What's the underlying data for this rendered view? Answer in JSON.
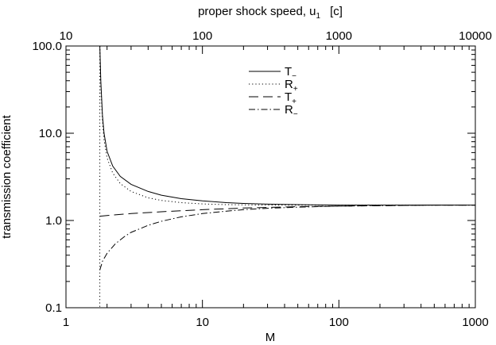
{
  "chart_data": {
    "type": "line",
    "top_axis_label": "proper shock speed,  u",
    "top_axis_label_subscript": "1",
    "top_axis_label_unit": "[c]",
    "xlabel": "M",
    "ylabel": "transmission coefficient",
    "x_scale": "log",
    "y_scale": "log",
    "xlim": [
      1,
      1000
    ],
    "ylim": [
      0.1,
      100
    ],
    "top_xlim": [
      10,
      10000
    ],
    "x_ticks": [
      "1",
      "10",
      "100",
      "1000"
    ],
    "y_ticks": [
      "0.1",
      "1.0",
      "10.0",
      "100.0"
    ],
    "top_ticks": [
      "10",
      "100",
      "1000",
      "10000"
    ],
    "grid": false,
    "legend_position": "top-center",
    "series": [
      {
        "name": "T",
        "name_subscript": "−",
        "style": "solid",
        "x": [
          1.77,
          1.8,
          1.85,
          1.9,
          2.0,
          2.2,
          2.5,
          3,
          4,
          5,
          7,
          10,
          15,
          20,
          30,
          50,
          100,
          200,
          500,
          1000
        ],
        "y": [
          100,
          40,
          16,
          10,
          6.2,
          4.2,
          3.2,
          2.6,
          2.15,
          1.95,
          1.78,
          1.68,
          1.6,
          1.57,
          1.54,
          1.52,
          1.5,
          1.5,
          1.5,
          1.5
        ]
      },
      {
        "name": "R",
        "name_subscript": "+",
        "style": "dotted",
        "x": [
          1.77,
          1.8,
          1.85,
          1.9,
          2.0,
          2.2,
          2.5,
          3,
          4,
          5,
          7,
          10,
          15,
          20,
          30,
          50,
          100,
          200,
          500,
          1000
        ],
        "y": [
          100,
          35,
          13.5,
          8.4,
          5.2,
          3.5,
          2.65,
          2.15,
          1.82,
          1.7,
          1.6,
          1.55,
          1.52,
          1.51,
          1.5,
          1.5,
          1.5,
          1.5,
          1.5,
          1.5
        ]
      },
      {
        "name": "T",
        "name_subscript": "+",
        "style": "dashed",
        "x": [
          1.77,
          2,
          3,
          5,
          10,
          20,
          50,
          100,
          200,
          500,
          1000
        ],
        "y": [
          1.12,
          1.14,
          1.2,
          1.26,
          1.33,
          1.39,
          1.44,
          1.46,
          1.48,
          1.5,
          1.5
        ]
      },
      {
        "name": "R",
        "name_subscript": "−",
        "style": "dashdot",
        "x": [
          1.77,
          1.85,
          2.0,
          2.3,
          2.7,
          3,
          4,
          5,
          7,
          10,
          15,
          20,
          30,
          50,
          100,
          200,
          500,
          1000
        ],
        "y": [
          0.27,
          0.34,
          0.42,
          0.54,
          0.66,
          0.73,
          0.88,
          0.98,
          1.1,
          1.2,
          1.28,
          1.33,
          1.38,
          1.42,
          1.46,
          1.48,
          1.5,
          1.5
        ]
      }
    ],
    "vertical_line": {
      "x": 1.77,
      "style": "dotted"
    }
  }
}
